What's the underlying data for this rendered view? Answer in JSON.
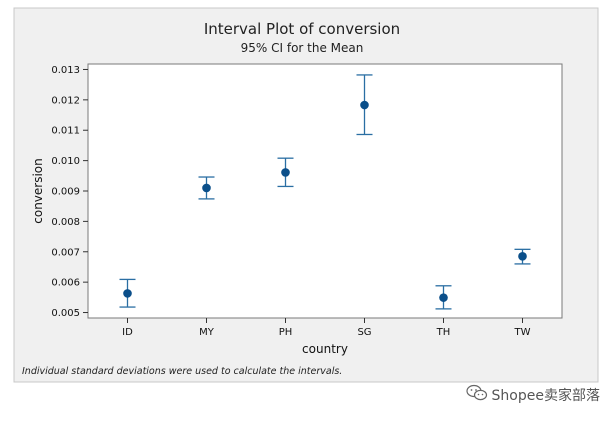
{
  "chart_data": {
    "type": "scatter",
    "title": "Interval Plot of conversion",
    "subtitle": "95% CI for the Mean",
    "xlabel": "country",
    "ylabel": "conversion",
    "categories": [
      "ID",
      "MY",
      "PH",
      "SG",
      "TH",
      "TW"
    ],
    "series": [
      {
        "means": [
          0.00563,
          0.0091,
          0.00961,
          0.01183,
          0.00549,
          0.00685
        ],
        "ci_lower": [
          0.00518,
          0.00874,
          0.00915,
          0.01086,
          0.00512,
          0.0066
        ],
        "ci_upper": [
          0.00609,
          0.00946,
          0.01008,
          0.01282,
          0.00588,
          0.00708
        ]
      }
    ],
    "ylim": [
      0.00482,
      0.01318
    ],
    "yticks": [
      0.005,
      0.006,
      0.007,
      0.008,
      0.009,
      0.01,
      0.011,
      0.012,
      0.013
    ],
    "ytick_labels": [
      "0.005",
      "0.006",
      "0.007",
      "0.008",
      "0.009",
      "0.010",
      "0.011",
      "0.012",
      "0.013"
    ],
    "grid": false,
    "footnote": "Individual standard deviations were used to calculate the intervals.",
    "colors": {
      "marker": "#0b4f8a",
      "interval": "#2a6ea3",
      "background": "#f0f0f0",
      "plot_area": "#ffffff"
    }
  },
  "watermark": {
    "text": "Shopee卖家部落",
    "icon": "wechat-icon"
  }
}
